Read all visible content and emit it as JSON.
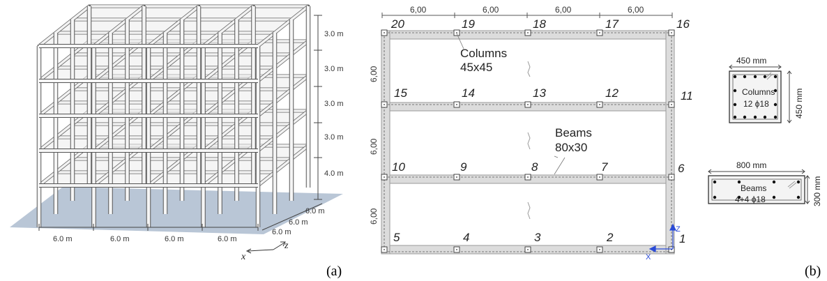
{
  "panel_a": {
    "label": "(a)",
    "story_heights": [
      "3.0 m",
      "3.0 m",
      "3.0 m",
      "3.0 m",
      "4.0 m"
    ],
    "bay_widths_x": [
      "6.0 m",
      "6.0 m",
      "6.0 m",
      "6.0 m"
    ],
    "bay_widths_z": [
      "6.0 m",
      "6.0 m",
      "6.0 m"
    ],
    "axis_x": "x",
    "axis_z": "z"
  },
  "panel_b": {
    "label": "(b)",
    "top_spans": [
      "6,00",
      "6,00",
      "6,00",
      "6,00"
    ],
    "left_spans": [
      "6,00",
      "6,00",
      "6,00"
    ],
    "node_labels": [
      "20",
      "19",
      "18",
      "17",
      "16",
      "15",
      "14",
      "13",
      "12",
      "11",
      "10",
      "9",
      "8",
      "7",
      "6",
      "5",
      "4",
      "3",
      "2",
      "1"
    ],
    "columns_label": [
      "Columns",
      "45x45"
    ],
    "beams_label": [
      "Beams",
      "80x30"
    ],
    "axis_x": "X",
    "axis_z": "Z"
  },
  "column_section": {
    "width": "450 mm",
    "height": "450 mm",
    "title": "Columns",
    "rebar": "12 ϕ18"
  },
  "beam_section": {
    "width": "800 mm",
    "height": "300 mm",
    "title": "Beams",
    "rebar": "4+4 ϕ18"
  }
}
